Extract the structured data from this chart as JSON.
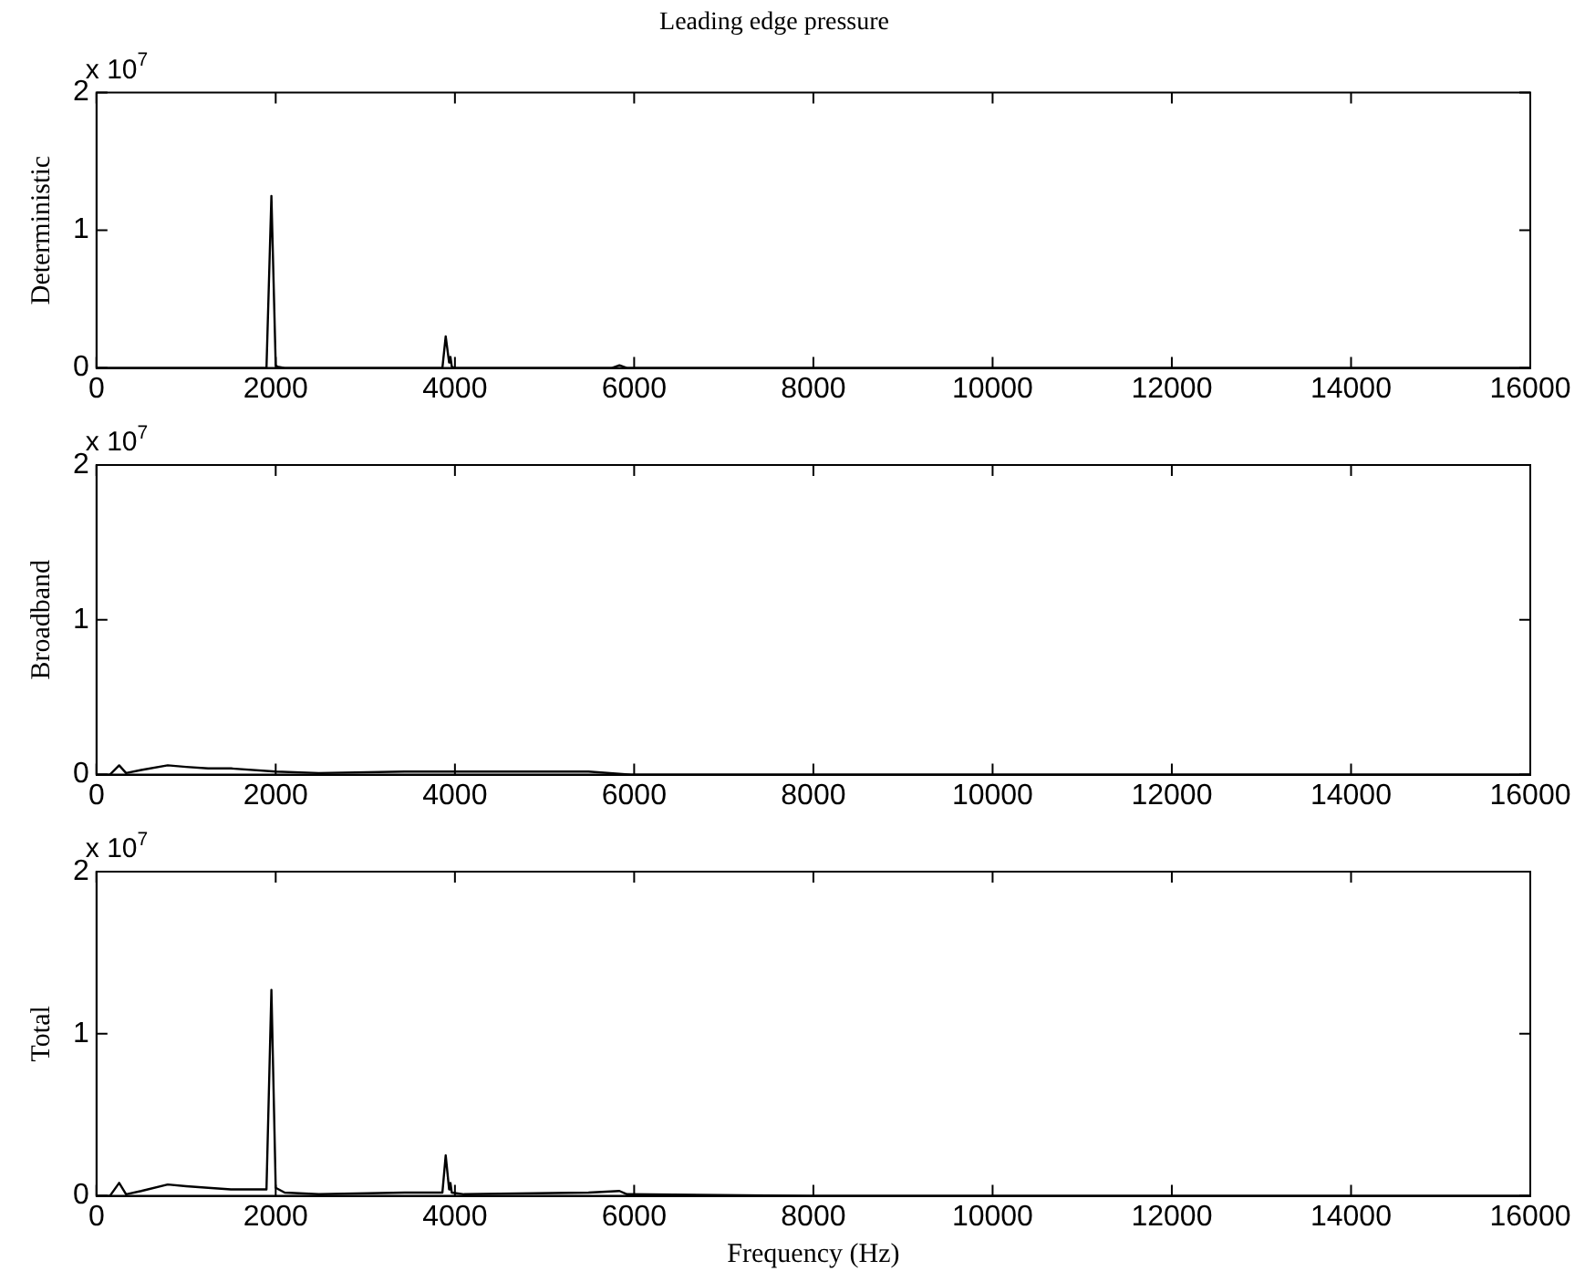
{
  "chart_data": [
    {
      "type": "line",
      "title": "Leading edge pressure",
      "ylabel": "Deterministic",
      "annotations": [
        "x 10$^{7}$"
      ],
      "legend": false,
      "grid": false,
      "marker": "none",
      "line_style": "solid",
      "xlim": [
        0,
        16000
      ],
      "xticks": [
        0,
        2000,
        4000,
        6000,
        8000,
        10000,
        12000,
        14000,
        16000
      ],
      "ylim": [
        0,
        2
      ],
      "yticks": [
        0,
        1,
        2
      ],
      "series": [
        {
          "color": "#000000",
          "x": [
            0,
            1850,
            1897,
            1952,
            2000,
            2020,
            2100,
            2500,
            3800,
            3860,
            3897,
            3935,
            3950,
            3965,
            3990,
            4100,
            5750,
            5836,
            5920,
            6100,
            16000
          ],
          "values": [
            0,
            0,
            0,
            1.25,
            0.02,
            0.01,
            0,
            0,
            0,
            0,
            0.23,
            0.04,
            0.08,
            0.01,
            0,
            0,
            0,
            0.02,
            0,
            0,
            0
          ]
        }
      ]
    },
    {
      "type": "line",
      "ylabel": "Broadband",
      "annotations": [
        "x 10$^{7}$"
      ],
      "legend": false,
      "grid": false,
      "marker": "none",
      "line_style": "solid",
      "xlim": [
        0,
        16000
      ],
      "xticks": [
        0,
        2000,
        4000,
        6000,
        8000,
        10000,
        12000,
        14000,
        16000
      ],
      "ylim": [
        0,
        2
      ],
      "yticks": [
        0,
        1,
        2
      ],
      "series": [
        {
          "color": "#000000",
          "x": [
            0,
            150,
            253,
            330,
            500,
            795,
            1000,
            1246,
            1500,
            2000,
            2480,
            3440,
            4500,
            5490,
            5970,
            8000,
            16000
          ],
          "values": [
            0,
            0,
            0.06,
            0.01,
            0.03,
            0.06,
            0.05,
            0.04,
            0.04,
            0.02,
            0.01,
            0.02,
            0.02,
            0.02,
            0,
            0,
            0
          ]
        }
      ]
    },
    {
      "type": "line",
      "xlabel": "Frequency (Hz)",
      "ylabel": "Total",
      "annotations": [
        "x 10$^{7}$"
      ],
      "legend": false,
      "grid": false,
      "marker": "none",
      "line_style": "solid",
      "xlim": [
        0,
        16000
      ],
      "xticks": [
        0,
        2000,
        4000,
        6000,
        8000,
        10000,
        12000,
        14000,
        16000
      ],
      "ylim": [
        0,
        2
      ],
      "yticks": [
        0,
        1,
        2
      ],
      "series": [
        {
          "color": "#000000",
          "x": [
            0,
            150,
            253,
            330,
            500,
            795,
            1000,
            1246,
            1500,
            1850,
            1897,
            1952,
            2000,
            2100,
            2480,
            3440,
            3860,
            3897,
            3935,
            3950,
            3965,
            4100,
            5490,
            5836,
            5920,
            8000,
            16000
          ],
          "values": [
            0,
            0,
            0.08,
            0.01,
            0.03,
            0.07,
            0.06,
            0.05,
            0.04,
            0.04,
            0.04,
            1.27,
            0.05,
            0.02,
            0.01,
            0.02,
            0.02,
            0.25,
            0.04,
            0.08,
            0.02,
            0.01,
            0.02,
            0.03,
            0.01,
            0,
            0
          ]
        }
      ]
    }
  ]
}
